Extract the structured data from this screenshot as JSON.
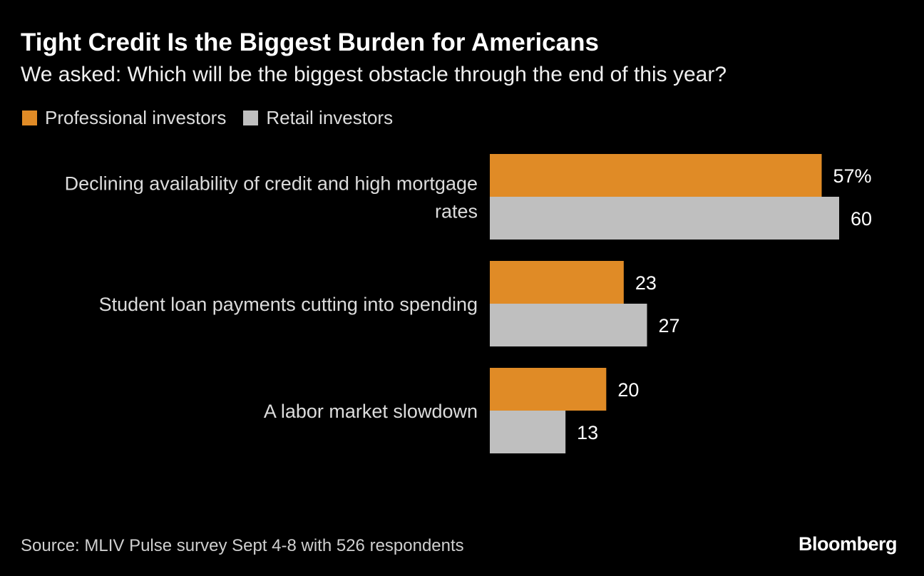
{
  "chart_data": {
    "type": "bar",
    "orientation": "horizontal",
    "title": "Tight Credit Is the Biggest Burden for Americans",
    "subtitle": "We asked: Which will be the biggest obstacle through the end of this year?",
    "categories": [
      [
        "Declining availability of credit and high mortgage",
        "rates"
      ],
      [
        "Student loan payments cutting into spending"
      ],
      [
        "A labor market slowdown"
      ]
    ],
    "series": [
      {
        "name": "Professional investors",
        "color": "#e08b26",
        "values": [
          57,
          23,
          20
        ],
        "labels": [
          "57%",
          "23",
          "20"
        ]
      },
      {
        "name": "Retail investors",
        "color": "#bfbfbf",
        "values": [
          60,
          27,
          13
        ],
        "labels": [
          "60",
          "27",
          "13"
        ]
      }
    ],
    "xlim": [
      0,
      60
    ],
    "grid": false,
    "legend": "top-left",
    "source": "Source: MLIV Pulse survey Sept 4-8 with 526 respondents",
    "brand": "Bloomberg"
  }
}
